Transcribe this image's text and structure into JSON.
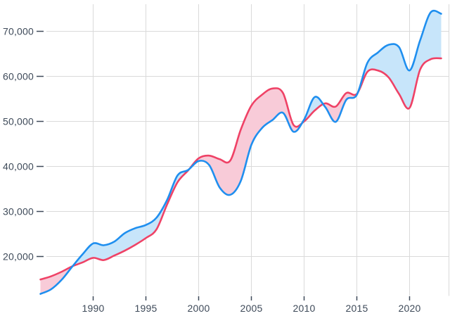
{
  "colors": {
    "background": "#FFFFFF",
    "grid": "#DADADA",
    "axis_text": "#3E4A59",
    "tick": "#3E4A59"
  },
  "chart_data": {
    "type": "area",
    "variant": "difference",
    "legend": false,
    "grid": true,
    "xlim": [
      1985,
      2023
    ],
    "ylim": [
      11000,
      76000
    ],
    "x": [
      1985,
      1986,
      1987,
      1988,
      1989,
      1990,
      1991,
      1992,
      1993,
      1994,
      1995,
      1996,
      1997,
      1998,
      1999,
      2000,
      2001,
      2002,
      2003,
      2004,
      2005,
      2006,
      2007,
      2008,
      2009,
      2010,
      2011,
      2012,
      2013,
      2014,
      2015,
      2016,
      2017,
      2018,
      2019,
      2020,
      2021,
      2022,
      2023
    ],
    "series": [
      {
        "name": "blue",
        "line_color": "#1F8FEF",
        "fill_color": "#C7E5FA",
        "values": [
          11700,
          12700,
          14800,
          17700,
          20500,
          22900,
          22500,
          23300,
          25200,
          26300,
          27000,
          28600,
          32500,
          38000,
          39200,
          41200,
          40300,
          35300,
          33700,
          36800,
          44800,
          48500,
          50300,
          51900,
          47700,
          50400,
          55400,
          53200,
          49900,
          54800,
          55900,
          63000,
          65300,
          67000,
          66500,
          61300,
          68000,
          74200,
          73900
        ]
      },
      {
        "name": "pink",
        "line_color": "#EF4266",
        "fill_color": "#F8CBD8",
        "values": [
          14900,
          15600,
          16600,
          17800,
          18700,
          19700,
          19200,
          20200,
          21300,
          22600,
          24100,
          26000,
          31500,
          36500,
          39100,
          41800,
          42400,
          41600,
          41300,
          48200,
          53500,
          55900,
          57300,
          56300,
          49200,
          50000,
          52400,
          54000,
          53300,
          56300,
          56100,
          61000,
          61300,
          59800,
          56100,
          53000,
          61500,
          63800,
          64000
        ]
      }
    ],
    "x_axis": {
      "ticks": [
        1990,
        1995,
        2000,
        2005,
        2010,
        2015,
        2020
      ],
      "labels": [
        "1990",
        "1995",
        "2000",
        "2005",
        "2010",
        "2015",
        "2020"
      ]
    },
    "y_axis": {
      "ticks": [
        20000,
        30000,
        40000,
        50000,
        60000,
        70000
      ],
      "labels": [
        "20,000",
        "30,000",
        "40,000",
        "50,000",
        "60,000",
        "70,000"
      ]
    }
  }
}
